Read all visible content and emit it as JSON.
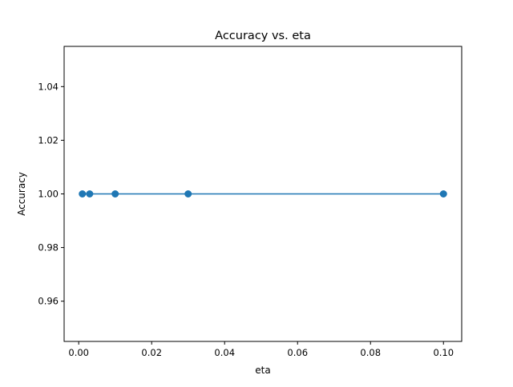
{
  "chart_data": {
    "type": "line",
    "title": "Accuracy vs. eta",
    "xlabel": "eta",
    "ylabel": "Accuracy",
    "xlim": [
      -0.004,
      0.105
    ],
    "ylim": [
      0.945,
      1.055
    ],
    "x_ticks": [
      0.0,
      0.02,
      0.04,
      0.06,
      0.08,
      0.1
    ],
    "x_tick_labels": [
      "0.00",
      "0.02",
      "0.04",
      "0.06",
      "0.08",
      "0.10"
    ],
    "y_ticks": [
      0.96,
      0.98,
      1.0,
      1.02,
      1.04
    ],
    "y_tick_labels": [
      "0.96",
      "0.98",
      "1.00",
      "1.02",
      "1.04"
    ],
    "grid": false,
    "legend": false,
    "series": [
      {
        "x": [
          0.001,
          0.003,
          0.01,
          0.03,
          0.1
        ],
        "y": [
          1.0,
          1.0,
          1.0,
          1.0,
          1.0
        ],
        "color": "#1f77b4",
        "marker": "circle"
      }
    ]
  }
}
